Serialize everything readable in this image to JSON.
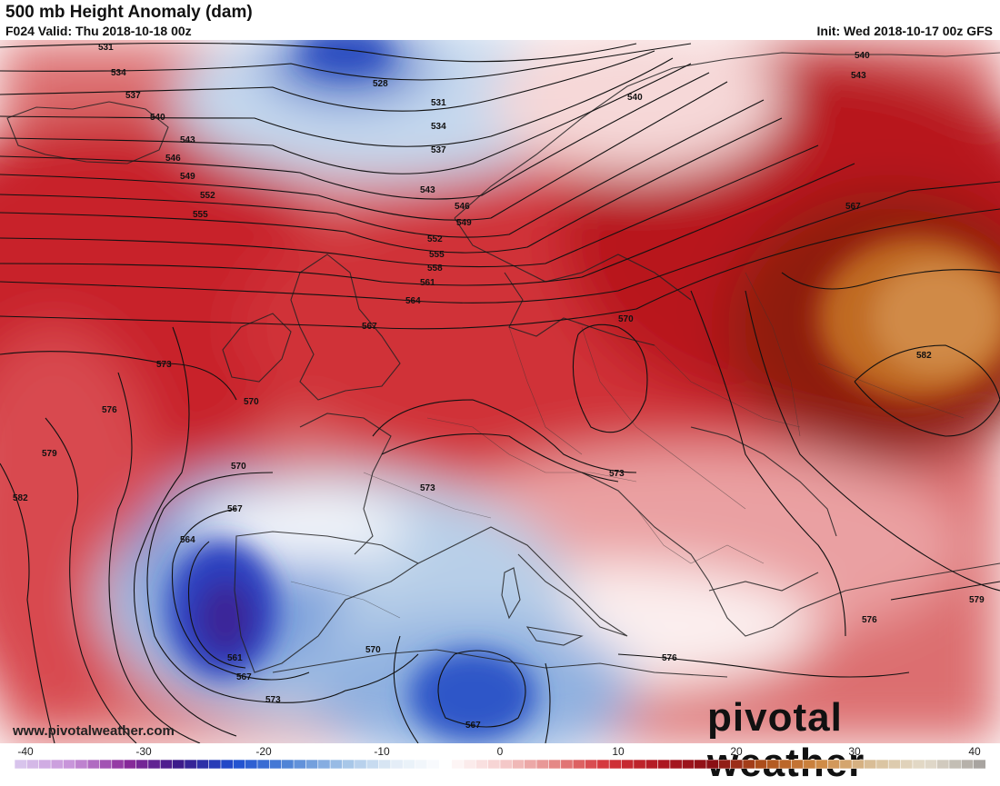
{
  "header": {
    "title": "500 mb Height Anomaly (dam)",
    "valid": "F024 Valid: Thu 2018-10-18 00z",
    "init": "Init: Wed 2018-10-17 00z GFS"
  },
  "footer": {
    "website": "www.pivotalweather.com",
    "brand_part1": "pivotal",
    "brand_part2": "weather"
  },
  "colorbar": {
    "ticks": [
      "-40",
      "-30",
      "-20",
      "-10",
      "0",
      "10",
      "20",
      "30",
      "40"
    ],
    "stops": [
      "#d8c4ec",
      "#c690d8",
      "#8a2a9a",
      "#3a1a8a",
      "#1e4fd0",
      "#4f83d6",
      "#9ec0e6",
      "#e2ecf6",
      "#ffffff",
      "#f6d0d0",
      "#e58a88",
      "#d4343a",
      "#b01822",
      "#8a0f14",
      "#b0541c",
      "#d08a44",
      "#d9c09a",
      "#e4dccc",
      "#a8a4a0"
    ]
  },
  "contour_labels": [
    "531",
    "534",
    "537",
    "540",
    "543",
    "546",
    "549",
    "552",
    "555",
    "528",
    "531",
    "534",
    "537",
    "543",
    "546",
    "549",
    "552",
    "555",
    "558",
    "561",
    "564",
    "567",
    "540",
    "540",
    "543",
    "567",
    "570",
    "573",
    "576",
    "579",
    "582",
    "570",
    "567",
    "564",
    "561",
    "567",
    "573",
    "570",
    "567",
    "573",
    "573",
    "576",
    "576",
    "579",
    "582",
    "570"
  ]
}
